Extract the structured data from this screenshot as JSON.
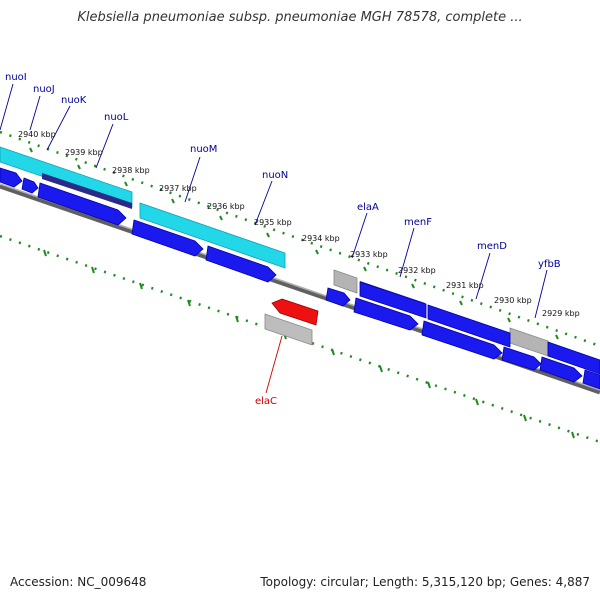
{
  "title": "Klebsiella pneumoniae subsp. pneumoniae MGH 78578, complete ...",
  "accession_label": "Accession: NC_009648",
  "topology_label": "Topology: circular; Length: 5,315,120 bp; Genes: 4,887",
  "colors": {
    "forward_gene": "#1a1aee",
    "reverse_gene": "#ee1111",
    "cds": "#22d8e8",
    "pseudo": "#b4b4b4",
    "dark_cds": "#2a2a88",
    "backbone": "#808080",
    "tick": "#228822",
    "label_forward": "#000099",
    "label_reverse": "#cc0000"
  },
  "kbp_ticks": [
    "2940 kbp",
    "2939 kbp",
    "2938 kbp",
    "2937 kbp",
    "2936 kbp",
    "2935 kbp",
    "2934 kbp",
    "2933 kbp",
    "2932 kbp",
    "2931 kbp",
    "2930 kbp",
    "2929 kbp"
  ],
  "genes_forward": [
    "nuoI",
    "nuoJ",
    "nuoK",
    "nuoL",
    "nuoM",
    "nuoN",
    "elaA",
    "menF",
    "menD",
    "yfbB"
  ],
  "genes_reverse": [
    "elaC"
  ]
}
